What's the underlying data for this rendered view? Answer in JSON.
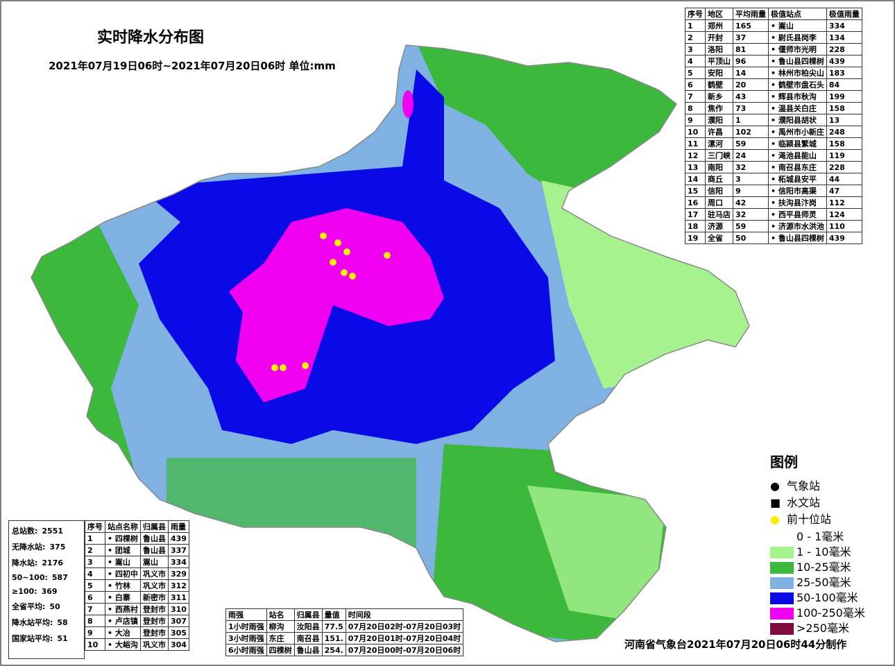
{
  "header": {
    "title": "实时降水分布图",
    "subtitle": "2021年07月19日06时~2021年07月20日06时 单位:mm"
  },
  "region_table": {
    "headers": [
      "序号",
      "地区",
      "平均雨量",
      "极值站点",
      "极值雨量"
    ],
    "rows": [
      [
        "1",
        "郑州",
        "165",
        "• 嵩山",
        "334"
      ],
      [
        "2",
        "开封",
        "37",
        "• 尉氏县岗李",
        "134"
      ],
      [
        "3",
        "洛阳",
        "81",
        "• 偃师市光明",
        "228"
      ],
      [
        "4",
        "平顶山",
        "96",
        "• 鲁山县四棵树",
        "439"
      ],
      [
        "5",
        "安阳",
        "14",
        "• 林州市柏尖山",
        "183"
      ],
      [
        "6",
        "鹤壁",
        "20",
        "• 鹤壁市盘石头",
        "84"
      ],
      [
        "7",
        "新乡",
        "43",
        "• 辉县市秋沟",
        "199"
      ],
      [
        "8",
        "焦作",
        "73",
        "• 温县关白庄",
        "158"
      ],
      [
        "9",
        "濮阳",
        "1",
        "• 濮阳县胡状",
        "13"
      ],
      [
        "10",
        "许昌",
        "102",
        "• 禹州市小新庄",
        "248"
      ],
      [
        "11",
        "漯河",
        "59",
        "• 临颍县繁城",
        "158"
      ],
      [
        "12",
        "三门峡",
        "24",
        "• 渑池县能山",
        "119"
      ],
      [
        "13",
        "南阳",
        "32",
        "• 南召县东庄",
        "228"
      ],
      [
        "14",
        "商丘",
        "3",
        "• 柘城县安平",
        "44"
      ],
      [
        "15",
        "信阳",
        "9",
        "• 信阳市高渠",
        "47"
      ],
      [
        "16",
        "周口",
        "42",
        "• 扶沟县汴岗",
        "112"
      ],
      [
        "17",
        "驻马店",
        "32",
        "• 西平县师灵",
        "124"
      ],
      [
        "18",
        "济源",
        "59",
        "• 济源市水洪池",
        "110"
      ],
      [
        "19",
        "全省",
        "50",
        "• 鲁山县四棵树",
        "439"
      ]
    ]
  },
  "summary": [
    [
      "总站数:",
      "2551"
    ],
    [
      "无降水站:",
      "375"
    ],
    [
      "降水站:",
      "2176"
    ],
    [
      "50~100:",
      "587"
    ],
    [
      "≥100:",
      "369"
    ],
    [
      "全省平均:",
      "50"
    ],
    [
      "降水站平均:",
      "58"
    ],
    [
      "国家站平均:",
      "51"
    ]
  ],
  "top10_table": {
    "headers": [
      "序号",
      "站点名称",
      "归属县",
      "雨量"
    ],
    "rows": [
      [
        "1",
        "• 四棵树",
        "鲁山县",
        "439"
      ],
      [
        "2",
        "• 团城",
        "鲁山县",
        "337"
      ],
      [
        "3",
        "• 嵩山",
        "嵩山",
        "334"
      ],
      [
        "4",
        "• 四初中",
        "巩义市",
        "329"
      ],
      [
        "5",
        "• 竹林",
        "巩义市",
        "312"
      ],
      [
        "6",
        "• 白寨",
        "新密市",
        "311"
      ],
      [
        "7",
        "• 西燕村",
        "登封市",
        "310"
      ],
      [
        "8",
        "• 卢店镇",
        "登封市",
        "307"
      ],
      [
        "9",
        "• 大冶",
        "登封市",
        "305"
      ],
      [
        "10",
        "• 大峪沟",
        "巩义市",
        "304"
      ]
    ]
  },
  "intensity_table": {
    "headers": [
      "雨强",
      "站名",
      "归属县",
      "量值",
      "时间段"
    ],
    "rows": [
      [
        "1小时雨强",
        "柳沟",
        "汝阳县",
        "77.5",
        "07月20日02时-07月20日03时"
      ],
      [
        "3小时雨强",
        "东庄",
        "南召县",
        "151.",
        "07月20日01时-07月20日04时"
      ],
      [
        "6小时雨强",
        "四棵树",
        "鲁山县",
        "254.",
        "07月20日00时-07月20日06时"
      ]
    ]
  },
  "legend": {
    "title": "图例",
    "symbols": [
      "气象站",
      "水文站",
      "前十位站"
    ],
    "bands": [
      {
        "label": "0 - 1毫米",
        "color": "#ffffff"
      },
      {
        "label": "1 - 10毫米",
        "color": "#a6f28f"
      },
      {
        "label": "10-25毫米",
        "color": "#3cb93c"
      },
      {
        "label": "25-50毫米",
        "color": "#7fb2e2"
      },
      {
        "label": "50-100毫米",
        "color": "#0a0ae6"
      },
      {
        "label": "100-250毫米",
        "color": "#f000f0"
      },
      {
        "label": ">250毫米",
        "color": "#7e0a3e"
      }
    ]
  },
  "footer": "河南省气象台2021年07月20日06时44分制作"
}
